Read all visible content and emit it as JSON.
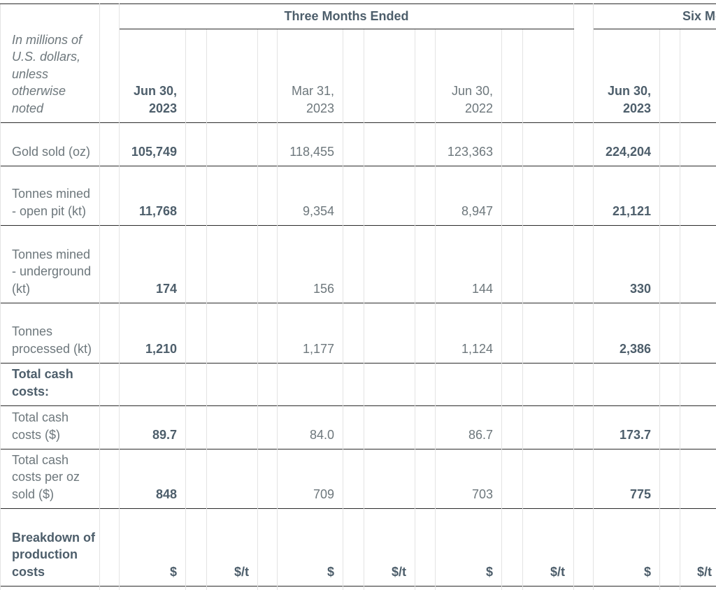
{
  "table": {
    "groups": [
      "Three Months Ended",
      "Six Months Ended"
    ],
    "columns": [
      "In millions of U.S. dollars, unless otherwise noted",
      "Jun 30, 2023",
      "Mar 31, 2023",
      "Jun 30, 2022",
      "Jun 30, 2023"
    ],
    "rows": [
      {
        "label": "Gold sold (oz)",
        "values": [
          "105,749",
          "118,455",
          "123,363",
          "224,204"
        ]
      },
      {
        "label": "Tonnes mined - open pit (kt)",
        "values": [
          "11,768",
          "9,354",
          "8,947",
          "21,121"
        ]
      },
      {
        "label": "Tonnes mined - underground (kt)",
        "values": [
          "174",
          "156",
          "144",
          "330"
        ]
      },
      {
        "label": "Tonnes processed (kt)",
        "values": [
          "1,210",
          "1,177",
          "1,124",
          "2,386"
        ]
      },
      {
        "label": "Total cash costs:",
        "values": []
      },
      {
        "label": "Total cash costs ($)",
        "values": [
          "89.7",
          "84.0",
          "86.7",
          "173.7"
        ]
      },
      {
        "label": "Total cash costs per oz sold ($)",
        "values": [
          "848",
          "709",
          "703",
          "775"
        ]
      }
    ],
    "units_label": "Breakdown of production costs",
    "units": [
      "$",
      "$/t",
      "$",
      "$/t",
      "$",
      "$/t",
      "$",
      "$/t"
    ]
  }
}
